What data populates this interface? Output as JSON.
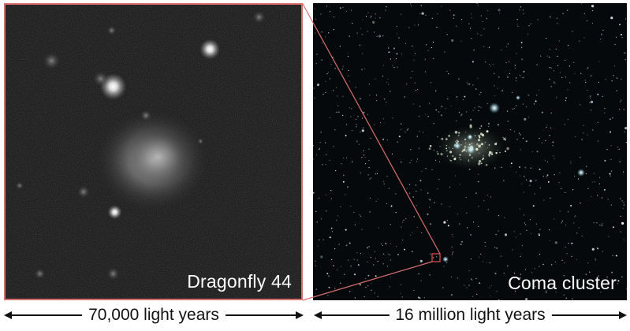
{
  "panels": {
    "left": {
      "caption": "Dragonfly 44",
      "frame_color": "#d86f6f"
    },
    "right": {
      "caption": "Coma cluster",
      "zoom_box_color": "#e05050"
    }
  },
  "scale_bars": {
    "left": "70,000 light years",
    "right": "16 million light years"
  },
  "colors": {
    "background": "#ffffff",
    "sky": "#06090b",
    "zoom_lines": "#d86f6f"
  }
}
